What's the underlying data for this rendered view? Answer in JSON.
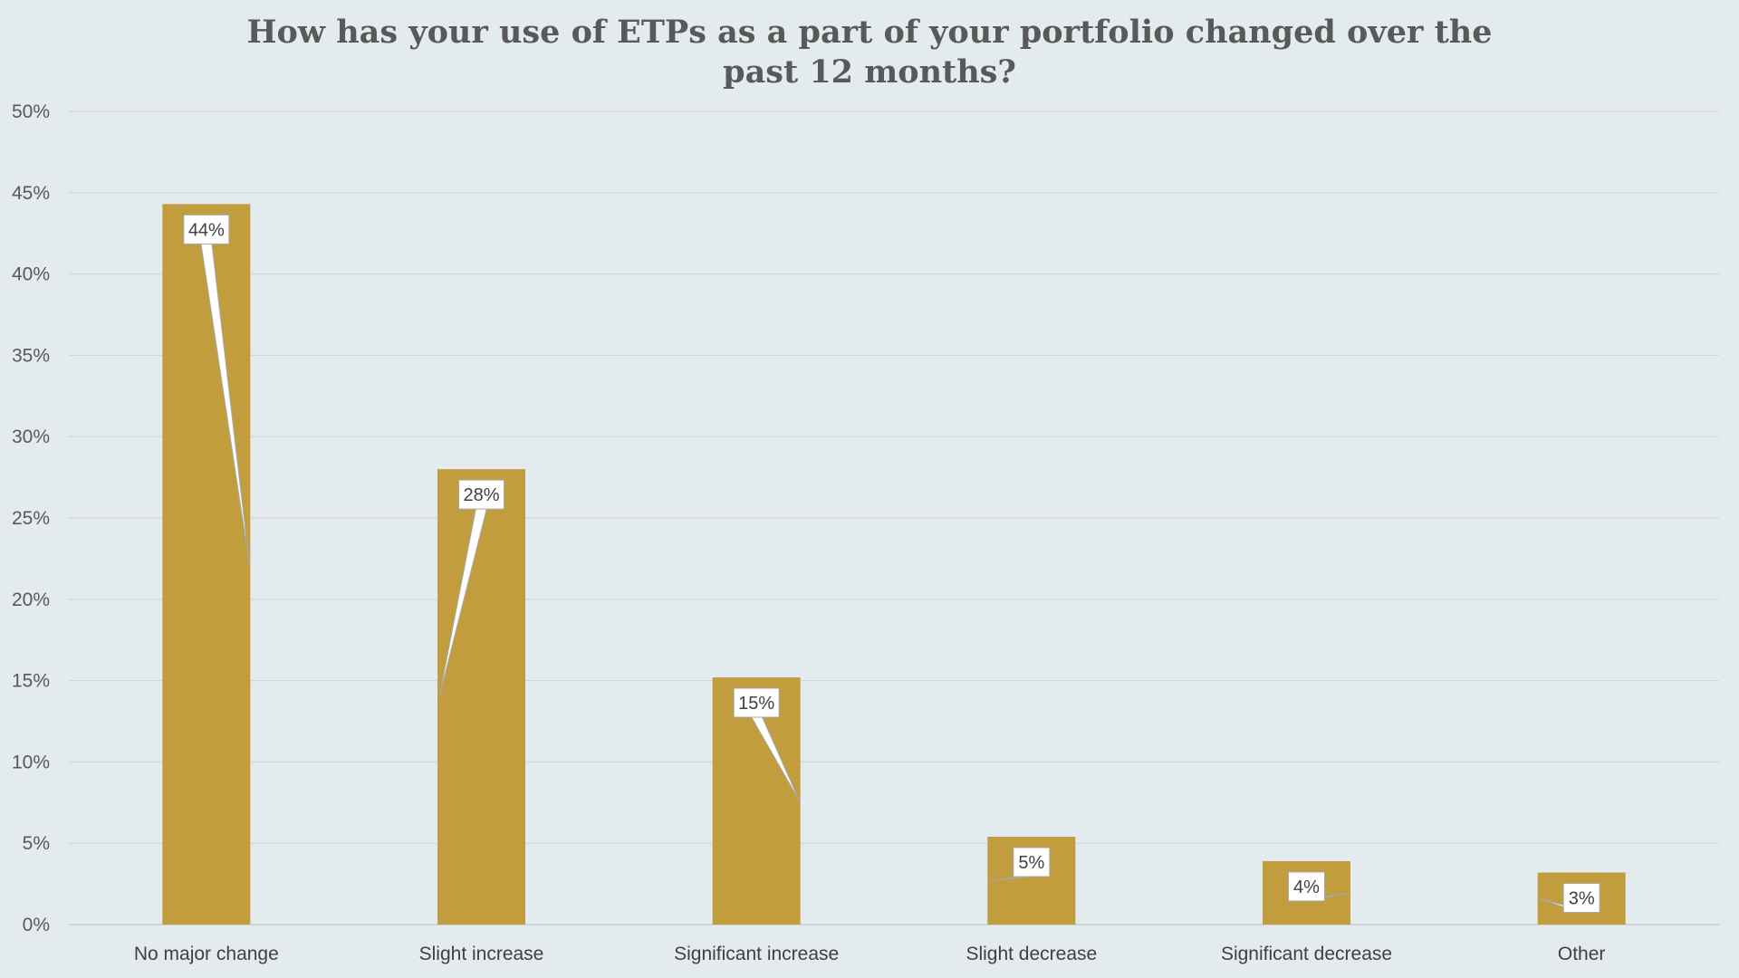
{
  "chart_data": {
    "type": "bar",
    "title": "How has your use of ETPs as a part of your portfolio changed over the past 12 months?",
    "xlabel": "",
    "ylabel": "",
    "categories": [
      "No major change",
      "Slight increase",
      "Significant increase",
      "Slight decrease",
      "Significant decrease",
      "Other"
    ],
    "values": [
      44.3,
      28,
      15.2,
      5.4,
      3.9,
      3.2
    ],
    "data_labels": [
      "44%",
      "28%",
      "15%",
      "5%",
      "4%",
      "3%"
    ],
    "ylim": [
      0,
      50
    ],
    "yticks": [
      0,
      5,
      10,
      15,
      20,
      25,
      30,
      35,
      40,
      45,
      50
    ],
    "ytick_labels": [
      "0%",
      "5%",
      "10%",
      "15%",
      "20%",
      "25%",
      "30%",
      "35%",
      "40%",
      "45%",
      "50%"
    ],
    "grid": true,
    "legend": "none",
    "colors": {
      "bar": "#c19d3e",
      "background": "#e4ebee",
      "gridline": "#d0d6d9",
      "label_box": "#ffffff"
    }
  }
}
